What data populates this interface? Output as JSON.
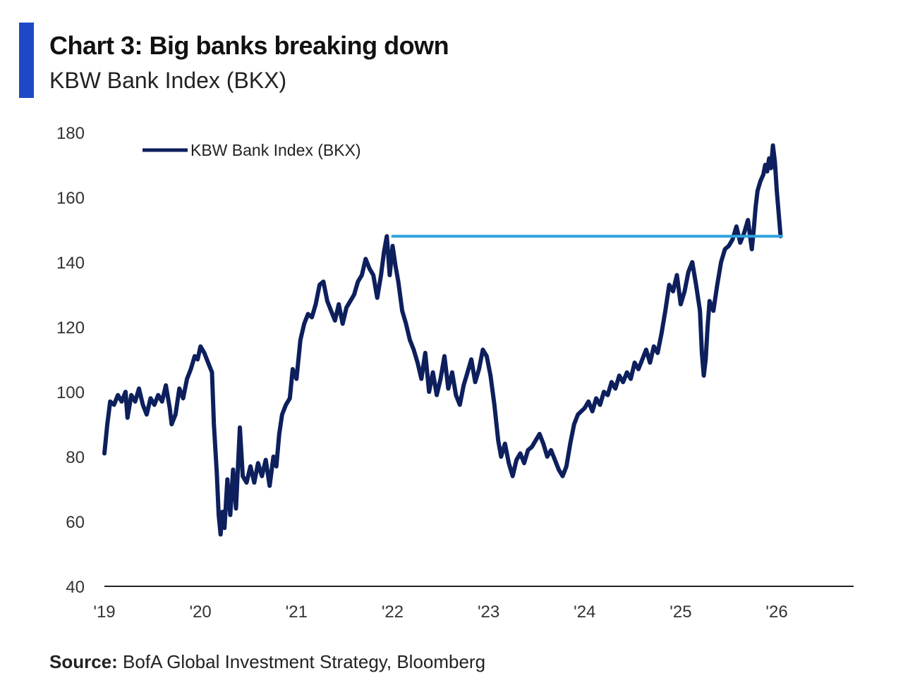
{
  "header": {
    "title": "Chart 3: Big banks breaking down",
    "subtitle": "KBW Bank Index (BKX)"
  },
  "source": {
    "label": "Source:",
    "text": "BofA Global Investment Strategy, Bloomberg"
  },
  "colors": {
    "accent": "#1f48c7",
    "series": "#0d1f5c",
    "resistance": "#2ea3dc",
    "axis": "#222222"
  },
  "chart_data": {
    "type": "line",
    "ylim": [
      40,
      180
    ],
    "yticks": [
      40,
      60,
      80,
      100,
      120,
      140,
      160,
      180
    ],
    "xlim": [
      2019.0,
      2026.8
    ],
    "xticks": [
      {
        "value": 2019,
        "label": "'19"
      },
      {
        "value": 2020,
        "label": "'20"
      },
      {
        "value": 2021,
        "label": "'21"
      },
      {
        "value": 2022,
        "label": "'22"
      },
      {
        "value": 2023,
        "label": "'23"
      },
      {
        "value": 2024,
        "label": "'24"
      },
      {
        "value": 2025,
        "label": "'25"
      },
      {
        "value": 2026,
        "label": "'26"
      }
    ],
    "legend": {
      "position": "top-left"
    },
    "grid": false,
    "series": [
      {
        "name": "KBW Bank Index (BKX)",
        "points": [
          [
            2019.0,
            81
          ],
          [
            2019.03,
            90
          ],
          [
            2019.06,
            97
          ],
          [
            2019.1,
            96
          ],
          [
            2019.14,
            99
          ],
          [
            2019.18,
            97
          ],
          [
            2019.22,
            100
          ],
          [
            2019.24,
            92
          ],
          [
            2019.28,
            99
          ],
          [
            2019.32,
            97
          ],
          [
            2019.36,
            101
          ],
          [
            2019.4,
            96
          ],
          [
            2019.44,
            93
          ],
          [
            2019.48,
            98
          ],
          [
            2019.52,
            96
          ],
          [
            2019.56,
            99
          ],
          [
            2019.6,
            97
          ],
          [
            2019.64,
            102
          ],
          [
            2019.68,
            95
          ],
          [
            2019.7,
            90
          ],
          [
            2019.74,
            93
          ],
          [
            2019.78,
            101
          ],
          [
            2019.82,
            98
          ],
          [
            2019.86,
            104
          ],
          [
            2019.9,
            107
          ],
          [
            2019.94,
            111
          ],
          [
            2019.97,
            110
          ],
          [
            2020.0,
            114
          ],
          [
            2020.04,
            112
          ],
          [
            2020.08,
            109
          ],
          [
            2020.12,
            106
          ],
          [
            2020.14,
            90
          ],
          [
            2020.17,
            75
          ],
          [
            2020.19,
            62
          ],
          [
            2020.21,
            56
          ],
          [
            2020.23,
            63
          ],
          [
            2020.25,
            58
          ],
          [
            2020.28,
            73
          ],
          [
            2020.31,
            62
          ],
          [
            2020.34,
            76
          ],
          [
            2020.37,
            64
          ],
          [
            2020.41,
            89
          ],
          [
            2020.44,
            74
          ],
          [
            2020.48,
            72
          ],
          [
            2020.52,
            77
          ],
          [
            2020.56,
            72
          ],
          [
            2020.6,
            78
          ],
          [
            2020.64,
            74
          ],
          [
            2020.68,
            79
          ],
          [
            2020.72,
            71
          ],
          [
            2020.76,
            80
          ],
          [
            2020.79,
            77
          ],
          [
            2020.82,
            87
          ],
          [
            2020.85,
            93
          ],
          [
            2020.89,
            96
          ],
          [
            2020.93,
            98
          ],
          [
            2020.96,
            107
          ],
          [
            2021.0,
            104
          ],
          [
            2021.04,
            116
          ],
          [
            2021.08,
            121
          ],
          [
            2021.12,
            124
          ],
          [
            2021.16,
            123
          ],
          [
            2021.2,
            127
          ],
          [
            2021.24,
            133
          ],
          [
            2021.28,
            134
          ],
          [
            2021.32,
            128
          ],
          [
            2021.36,
            125
          ],
          [
            2021.4,
            122
          ],
          [
            2021.44,
            127
          ],
          [
            2021.48,
            121
          ],
          [
            2021.52,
            126
          ],
          [
            2021.56,
            128
          ],
          [
            2021.6,
            130
          ],
          [
            2021.64,
            134
          ],
          [
            2021.68,
            136
          ],
          [
            2021.72,
            141
          ],
          [
            2021.76,
            138
          ],
          [
            2021.8,
            136
          ],
          [
            2021.84,
            129
          ],
          [
            2021.88,
            136
          ],
          [
            2021.91,
            143
          ],
          [
            2021.94,
            148
          ],
          [
            2021.97,
            136
          ],
          [
            2022.0,
            145
          ],
          [
            2022.03,
            139
          ],
          [
            2022.06,
            134
          ],
          [
            2022.1,
            125
          ],
          [
            2022.14,
            121
          ],
          [
            2022.18,
            116
          ],
          [
            2022.22,
            113
          ],
          [
            2022.26,
            109
          ],
          [
            2022.3,
            104
          ],
          [
            2022.34,
            112
          ],
          [
            2022.38,
            100
          ],
          [
            2022.42,
            106
          ],
          [
            2022.46,
            99
          ],
          [
            2022.5,
            104
          ],
          [
            2022.54,
            111
          ],
          [
            2022.58,
            101
          ],
          [
            2022.62,
            106
          ],
          [
            2022.66,
            99
          ],
          [
            2022.7,
            96
          ],
          [
            2022.74,
            102
          ],
          [
            2022.78,
            106
          ],
          [
            2022.82,
            110
          ],
          [
            2022.86,
            103
          ],
          [
            2022.9,
            107
          ],
          [
            2022.94,
            113
          ],
          [
            2022.98,
            111
          ],
          [
            2023.02,
            105
          ],
          [
            2023.06,
            96
          ],
          [
            2023.1,
            85
          ],
          [
            2023.13,
            80
          ],
          [
            2023.17,
            84
          ],
          [
            2023.21,
            78
          ],
          [
            2023.25,
            74
          ],
          [
            2023.29,
            79
          ],
          [
            2023.33,
            81
          ],
          [
            2023.37,
            78
          ],
          [
            2023.41,
            82
          ],
          [
            2023.45,
            83
          ],
          [
            2023.49,
            85
          ],
          [
            2023.53,
            87
          ],
          [
            2023.57,
            84
          ],
          [
            2023.61,
            80
          ],
          [
            2023.65,
            82
          ],
          [
            2023.69,
            79
          ],
          [
            2023.73,
            76
          ],
          [
            2023.77,
            74
          ],
          [
            2023.81,
            77
          ],
          [
            2023.85,
            84
          ],
          [
            2023.89,
            90
          ],
          [
            2023.93,
            93
          ],
          [
            2024.0,
            95
          ],
          [
            2024.04,
            97
          ],
          [
            2024.08,
            94
          ],
          [
            2024.12,
            98
          ],
          [
            2024.16,
            96
          ],
          [
            2024.2,
            100
          ],
          [
            2024.24,
            99
          ],
          [
            2024.28,
            103
          ],
          [
            2024.32,
            101
          ],
          [
            2024.36,
            105
          ],
          [
            2024.4,
            103
          ],
          [
            2024.44,
            106
          ],
          [
            2024.48,
            104
          ],
          [
            2024.52,
            109
          ],
          [
            2024.56,
            107
          ],
          [
            2024.6,
            110
          ],
          [
            2024.64,
            113
          ],
          [
            2024.68,
            109
          ],
          [
            2024.72,
            114
          ],
          [
            2024.76,
            112
          ],
          [
            2024.8,
            118
          ],
          [
            2024.84,
            125
          ],
          [
            2024.88,
            133
          ],
          [
            2024.92,
            131
          ],
          [
            2024.96,
            136
          ],
          [
            2025.0,
            127
          ],
          [
            2025.04,
            131
          ],
          [
            2025.08,
            137
          ],
          [
            2025.12,
            140
          ],
          [
            2025.16,
            133
          ],
          [
            2025.2,
            125
          ],
          [
            2025.22,
            112
          ],
          [
            2025.24,
            105
          ],
          [
            2025.26,
            110
          ],
          [
            2025.28,
            120
          ],
          [
            2025.3,
            128
          ],
          [
            2025.34,
            125
          ],
          [
            2025.38,
            133
          ],
          [
            2025.42,
            140
          ],
          [
            2025.46,
            144
          ],
          [
            2025.5,
            145
          ],
          [
            2025.54,
            147
          ],
          [
            2025.58,
            151
          ],
          [
            2025.62,
            146
          ],
          [
            2025.66,
            149
          ],
          [
            2025.7,
            153
          ],
          [
            2025.74,
            144
          ],
          [
            2025.76,
            150
          ],
          [
            2025.78,
            157
          ],
          [
            2025.8,
            162
          ],
          [
            2025.83,
            165
          ],
          [
            2025.86,
            167
          ],
          [
            2025.88,
            170
          ],
          [
            2025.9,
            168
          ],
          [
            2025.92,
            172
          ],
          [
            2025.94,
            169
          ],
          [
            2025.96,
            176
          ],
          [
            2025.98,
            171
          ],
          [
            2026.0,
            162
          ],
          [
            2026.02,
            155
          ],
          [
            2026.04,
            148
          ]
        ]
      },
      {
        "name": "",
        "points": [
          [
            2022.0,
            148
          ],
          [
            2026.05,
            148
          ]
        ]
      }
    ]
  }
}
